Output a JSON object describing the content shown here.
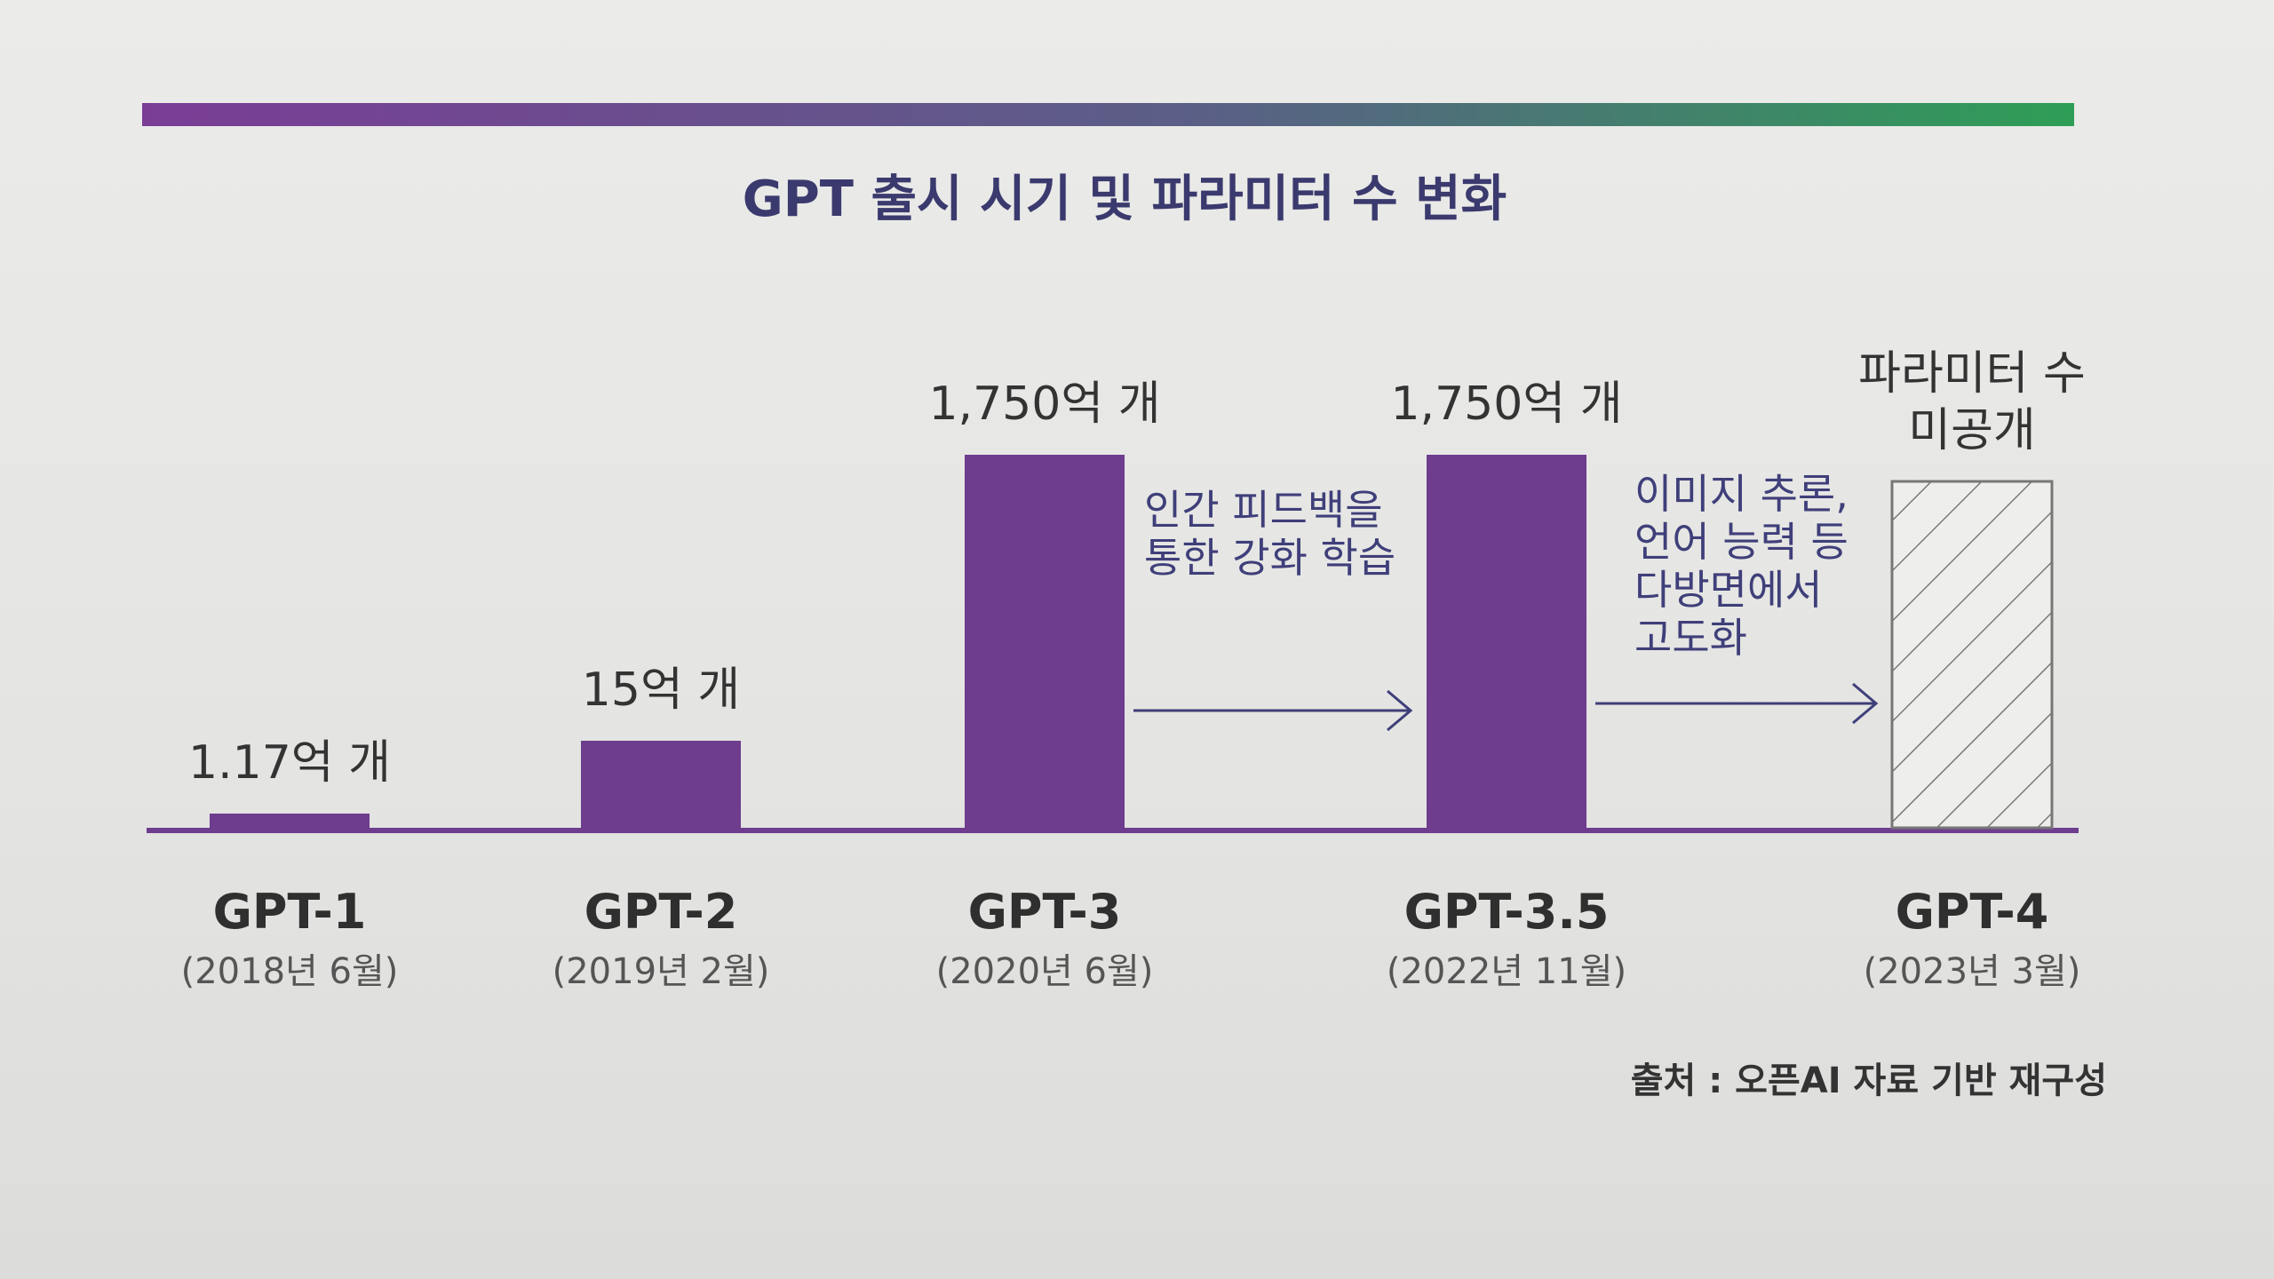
{
  "title": "GPT 출시 시기 및 파라미터 수 변화",
  "source": "출처 : 오픈AI 자료 기반 재구성",
  "colors": {
    "bar": "#6e3d8e",
    "baseline": "#6e3d8e",
    "title_text": "#3b3a6e",
    "arrow": "#3f3f7a",
    "text": "#333333",
    "gradient_start": "#7a3d96",
    "gradient_end": "#2e9e56"
  },
  "chart_data": {
    "type": "bar",
    "title": "GPT 출시 시기 및 파라미터 수 변화",
    "unit": "억 개",
    "categories": [
      "GPT-1",
      "GPT-2",
      "GPT-3",
      "GPT-3.5",
      "GPT-4"
    ],
    "dates": [
      "(2018년 6월)",
      "(2019년 2월)",
      "(2020년 6월)",
      "(2022년 11월)",
      "(2023년 3월)"
    ],
    "values": [
      1.17,
      15,
      1750,
      1750,
      null
    ],
    "value_labels": [
      "1.17억 개",
      "15억 개",
      "1,750억 개",
      "1,750억 개",
      "파라미터 수\n미공개"
    ],
    "hatched": [
      false,
      false,
      false,
      false,
      true
    ],
    "annotations": [
      {
        "from": "GPT-3",
        "to": "GPT-3.5",
        "lines": [
          "인간 피드백을",
          "통한 강화 학습"
        ]
      },
      {
        "from": "GPT-3.5",
        "to": "GPT-4",
        "lines": [
          "이미지 추론,",
          "언어 능력 등",
          "다방면에서",
          "고도화"
        ]
      }
    ],
    "scale": "non-linear (illustrative)",
    "grid": false,
    "legend": "none"
  }
}
